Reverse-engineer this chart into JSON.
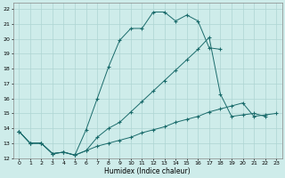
{
  "title": "",
  "xlabel": "Humidex (Indice chaleur)",
  "bg_color": "#ceecea",
  "grid_color": "#aed4d2",
  "line_color": "#1a6b6b",
  "xlim": [
    -0.5,
    23.5
  ],
  "ylim": [
    12,
    22.4
  ],
  "yticks": [
    12,
    13,
    14,
    15,
    16,
    17,
    18,
    19,
    20,
    21,
    22
  ],
  "xticks": [
    0,
    1,
    2,
    3,
    4,
    5,
    6,
    7,
    8,
    9,
    10,
    11,
    12,
    13,
    14,
    15,
    16,
    17,
    18,
    19,
    20,
    21,
    22,
    23
  ],
  "line1_x": [
    0,
    1,
    2,
    3,
    4,
    5,
    6,
    7,
    8,
    9,
    10,
    11,
    12,
    13,
    14,
    15,
    16,
    17,
    18
  ],
  "line1_y": [
    13.8,
    13.0,
    13.0,
    12.3,
    12.4,
    12.2,
    13.9,
    16.0,
    18.1,
    19.9,
    20.7,
    20.7,
    21.8,
    21.8,
    21.2,
    21.6,
    21.2,
    19.4,
    19.3
  ],
  "line2_x": [
    0,
    1,
    2,
    3,
    4,
    5,
    6,
    7,
    8,
    9,
    10,
    11,
    12,
    13,
    14,
    15,
    16,
    17,
    18,
    19,
    20,
    21,
    22
  ],
  "line2_y": [
    13.8,
    13.0,
    13.0,
    12.3,
    12.4,
    12.2,
    12.5,
    13.4,
    14.0,
    14.4,
    15.1,
    15.8,
    16.5,
    17.2,
    17.9,
    18.6,
    19.3,
    20.1,
    16.3,
    14.8,
    14.9,
    15.0,
    14.8
  ],
  "line3_x": [
    0,
    1,
    2,
    3,
    4,
    5,
    6,
    7,
    8,
    9,
    10,
    11,
    12,
    13,
    14,
    15,
    16,
    17,
    18,
    19,
    20,
    21,
    22,
    23
  ],
  "line3_y": [
    13.8,
    13.0,
    13.0,
    12.3,
    12.4,
    12.2,
    12.5,
    12.8,
    13.0,
    13.2,
    13.4,
    13.7,
    13.9,
    14.1,
    14.4,
    14.6,
    14.8,
    15.1,
    15.3,
    15.5,
    15.7,
    14.8,
    14.9,
    15.0
  ]
}
